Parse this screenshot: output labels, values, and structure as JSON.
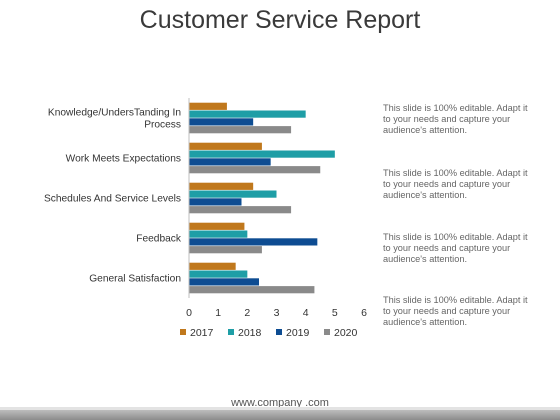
{
  "page": {
    "title": "Customer Service Report",
    "footer": "www.company .com"
  },
  "notes": [
    "This slide is 100% editable. Adapt it to your needs and capture your audience's attention.",
    "This slide is 100% editable. Adapt it to your needs and capture your audience's attention.",
    "This slide is 100% editable. Adapt it to your needs and capture your audience's attention.",
    "This slide is 100% editable. Adapt it to your needs and capture your audience's attention."
  ],
  "chart_data": {
    "type": "bar",
    "orientation": "horizontal",
    "categories": [
      "Knowledge/UndersTanding In Process",
      "Work Meets Expectations",
      "Schedules And Service Levels",
      "Feedback",
      "General Satisfaction"
    ],
    "series": [
      {
        "name": "2017",
        "color": "#c0781c",
        "values": [
          1.3,
          2.5,
          2.2,
          1.9,
          1.6
        ]
      },
      {
        "name": "2018",
        "color": "#1e9ea6",
        "values": [
          4.0,
          5.0,
          3.0,
          2.0,
          2.0
        ]
      },
      {
        "name": "2019",
        "color": "#0d4c92",
        "values": [
          2.2,
          2.8,
          1.8,
          4.4,
          2.4
        ]
      },
      {
        "name": "2020",
        "color": "#8a8a8a",
        "values": [
          3.5,
          4.5,
          3.5,
          2.5,
          4.3
        ]
      }
    ],
    "xlim": [
      0,
      6
    ],
    "xticks": [
      "0",
      "1",
      "2",
      "3",
      "4",
      "5",
      "6"
    ],
    "legend": "bottom",
    "grid": false
  }
}
